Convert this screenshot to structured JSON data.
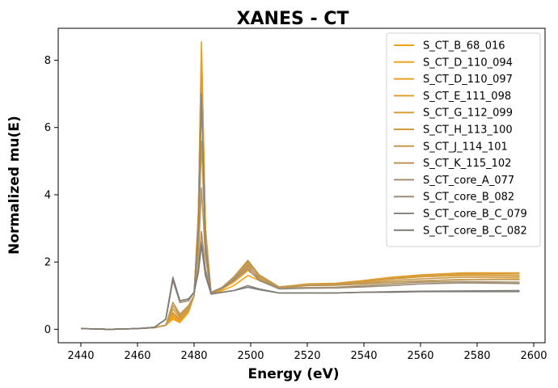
{
  "chart_data": {
    "type": "line",
    "title": "XANES - CT",
    "xlabel": "Energy (eV)",
    "ylabel": "Normalized mu(E)",
    "xlim": [
      2432,
      2604
    ],
    "ylim": [
      -0.4,
      8.95
    ],
    "xticks": [
      2440,
      2460,
      2480,
      2500,
      2520,
      2540,
      2560,
      2580,
      2600
    ],
    "yticks": [
      0,
      2,
      4,
      6,
      8
    ],
    "grid": false,
    "legend_position": "top-right",
    "series": [
      {
        "name": "S_CT_B_68_016",
        "color": "#f5a30c",
        "x": [
          2440,
          2450,
          2460,
          2466,
          2470,
          2472.5,
          2475,
          2478,
          2480,
          2481.5,
          2482.6,
          2484,
          2486,
          2490,
          2494,
          2499,
          2503,
          2510,
          2520,
          2530,
          2540,
          2550,
          2560,
          2575,
          2595
        ],
        "y": [
          0.02,
          0.0,
          0.02,
          0.05,
          0.12,
          0.3,
          0.2,
          0.5,
          1.0,
          3.5,
          8.55,
          3.0,
          1.05,
          1.15,
          1.3,
          1.6,
          1.45,
          1.22,
          1.3,
          1.32,
          1.36,
          1.4,
          1.44,
          1.48,
          1.5
        ]
      },
      {
        "name": "S_CT_D_110_094",
        "color": "#f0a21a",
        "x": [
          2440,
          2450,
          2460,
          2466,
          2470,
          2472.5,
          2475,
          2478,
          2480,
          2481.5,
          2482.6,
          2484,
          2486,
          2490,
          2494,
          2499,
          2503,
          2510,
          2520,
          2530,
          2540,
          2550,
          2560,
          2575,
          2595
        ],
        "y": [
          0.02,
          0.0,
          0.02,
          0.05,
          0.12,
          0.35,
          0.22,
          0.52,
          1.0,
          3.4,
          8.4,
          3.0,
          1.05,
          1.2,
          1.4,
          1.75,
          1.5,
          1.25,
          1.32,
          1.35,
          1.42,
          1.5,
          1.56,
          1.6,
          1.6
        ]
      },
      {
        "name": "S_CT_D_110_097",
        "color": "#e9a025",
        "x": [
          2440,
          2450,
          2460,
          2466,
          2470,
          2472.5,
          2475,
          2478,
          2480,
          2481.5,
          2482.6,
          2484,
          2486,
          2490,
          2494,
          2499,
          2503,
          2510,
          2520,
          2530,
          2540,
          2550,
          2560,
          2575,
          2595
        ],
        "y": [
          0.02,
          0.0,
          0.02,
          0.05,
          0.12,
          0.4,
          0.25,
          0.55,
          1.0,
          3.4,
          8.3,
          3.0,
          1.05,
          1.2,
          1.45,
          1.85,
          1.55,
          1.25,
          1.34,
          1.36,
          1.45,
          1.55,
          1.6,
          1.66,
          1.65
        ]
      },
      {
        "name": "S_CT_E_111_098",
        "color": "#e29e2e",
        "x": [
          2440,
          2450,
          2460,
          2466,
          2470,
          2472.5,
          2475,
          2478,
          2480,
          2481.5,
          2482.6,
          2484,
          2486,
          2490,
          2494,
          2499,
          2503,
          2510,
          2520,
          2530,
          2540,
          2550,
          2560,
          2575,
          2595
        ],
        "y": [
          0.02,
          0.0,
          0.02,
          0.05,
          0.12,
          0.45,
          0.28,
          0.55,
          1.0,
          3.3,
          8.0,
          3.0,
          1.05,
          1.22,
          1.5,
          1.95,
          1.6,
          1.25,
          1.35,
          1.37,
          1.45,
          1.55,
          1.62,
          1.68,
          1.68
        ]
      },
      {
        "name": "S_CT_G_112_099",
        "color": "#d99c36",
        "x": [
          2440,
          2450,
          2460,
          2466,
          2470,
          2472.5,
          2475,
          2478,
          2480,
          2481.5,
          2482.6,
          2484,
          2486,
          2490,
          2494,
          2499,
          2503,
          2510,
          2520,
          2530,
          2540,
          2550,
          2560,
          2575,
          2595
        ],
        "y": [
          0.02,
          0.0,
          0.02,
          0.05,
          0.12,
          0.5,
          0.3,
          0.58,
          1.0,
          3.2,
          7.6,
          3.0,
          1.05,
          1.25,
          1.55,
          2.0,
          1.62,
          1.26,
          1.34,
          1.36,
          1.44,
          1.52,
          1.6,
          1.66,
          1.65
        ]
      },
      {
        "name": "S_CT_H_113_100",
        "color": "#d09a3f",
        "x": [
          2440,
          2450,
          2460,
          2466,
          2470,
          2472.5,
          2475,
          2478,
          2480,
          2481.5,
          2482.6,
          2484,
          2486,
          2490,
          2494,
          2499,
          2503,
          2510,
          2520,
          2530,
          2540,
          2550,
          2560,
          2575,
          2595
        ],
        "y": [
          0.02,
          0.0,
          0.02,
          0.05,
          0.12,
          0.6,
          0.35,
          0.6,
          1.0,
          3.0,
          6.8,
          2.8,
          1.05,
          1.25,
          1.55,
          2.05,
          1.62,
          1.26,
          1.33,
          1.35,
          1.42,
          1.5,
          1.56,
          1.62,
          1.6
        ]
      },
      {
        "name": "S_CT_J_114_101",
        "color": "#c69a4b",
        "x": [
          2440,
          2450,
          2460,
          2466,
          2470,
          2472.5,
          2475,
          2478,
          2480,
          2481.5,
          2482.6,
          2484,
          2486,
          2490,
          2494,
          2499,
          2503,
          2510,
          2520,
          2530,
          2540,
          2550,
          2560,
          2575,
          2595
        ],
        "y": [
          0.02,
          0.0,
          0.02,
          0.05,
          0.12,
          0.7,
          0.4,
          0.65,
          1.0,
          2.6,
          5.6,
          2.5,
          1.05,
          1.25,
          1.55,
          2.05,
          1.6,
          1.25,
          1.32,
          1.33,
          1.38,
          1.45,
          1.5,
          1.55,
          1.55
        ]
      },
      {
        "name": "S_CT_K_115_102",
        "color": "#bc9757",
        "x": [
          2440,
          2450,
          2460,
          2466,
          2470,
          2472.5,
          2475,
          2478,
          2480,
          2481.5,
          2482.6,
          2484,
          2486,
          2490,
          2494,
          2499,
          2503,
          2510,
          2520,
          2530,
          2540,
          2550,
          2560,
          2575,
          2595
        ],
        "y": [
          0.02,
          0.0,
          0.02,
          0.05,
          0.12,
          0.8,
          0.45,
          0.7,
          1.0,
          2.2,
          4.2,
          2.2,
          1.05,
          1.25,
          1.55,
          2.0,
          1.58,
          1.24,
          1.3,
          1.31,
          1.35,
          1.4,
          1.44,
          1.48,
          1.48
        ]
      },
      {
        "name": "S_CT_core_A_077",
        "color": "#a8906c",
        "x": [
          2440,
          2450,
          2460,
          2466,
          2470,
          2472.5,
          2475,
          2478,
          2480,
          2481.5,
          2482.6,
          2484,
          2486,
          2490,
          2494,
          2499,
          2503,
          2510,
          2520,
          2530,
          2540,
          2550,
          2560,
          2575,
          2595
        ],
        "y": [
          0.02,
          0.0,
          0.02,
          0.06,
          0.3,
          1.5,
          0.8,
          0.85,
          1.1,
          1.8,
          2.9,
          1.8,
          1.1,
          1.25,
          1.5,
          1.9,
          1.5,
          1.22,
          1.24,
          1.25,
          1.3,
          1.35,
          1.4,
          1.42,
          1.4
        ]
      },
      {
        "name": "S_CT_core_B_082",
        "color": "#9c8c78",
        "x": [
          2440,
          2450,
          2460,
          2466,
          2470,
          2472.5,
          2475,
          2478,
          2480,
          2481.5,
          2482.6,
          2484,
          2486,
          2490,
          2494,
          2499,
          2503,
          2510,
          2520,
          2530,
          2540,
          2550,
          2560,
          2575,
          2595
        ],
        "y": [
          0.02,
          0.0,
          0.02,
          0.06,
          0.3,
          1.45,
          0.8,
          0.85,
          1.1,
          1.7,
          2.6,
          1.7,
          1.1,
          1.22,
          1.45,
          1.8,
          1.45,
          1.2,
          1.22,
          1.23,
          1.26,
          1.3,
          1.35,
          1.38,
          1.36
        ]
      },
      {
        "name": "S_CT_core_B_C_079",
        "color": "#8a8680",
        "x": [
          2440,
          2450,
          2460,
          2466,
          2470,
          2472.5,
          2475,
          2478,
          2480,
          2481.5,
          2482.6,
          2484,
          2486,
          2490,
          2494,
          2499,
          2503,
          2510,
          2520,
          2530,
          2540,
          2550,
          2560,
          2575,
          2595
        ],
        "y": [
          0.02,
          0.0,
          0.02,
          0.06,
          0.3,
          1.55,
          0.85,
          0.9,
          1.1,
          3.0,
          7.0,
          2.5,
          1.05,
          1.1,
          1.15,
          1.3,
          1.2,
          1.08,
          1.08,
          1.08,
          1.1,
          1.1,
          1.12,
          1.12,
          1.12
        ]
      },
      {
        "name": "S_CT_core_B_C_082",
        "color": "#7e7a76",
        "x": [
          2440,
          2450,
          2460,
          2466,
          2470,
          2472.5,
          2475,
          2478,
          2480,
          2481.5,
          2482.6,
          2484,
          2486,
          2490,
          2494,
          2499,
          2503,
          2510,
          2520,
          2530,
          2540,
          2550,
          2560,
          2575,
          2595
        ],
        "y": [
          0.02,
          0.0,
          0.02,
          0.06,
          0.3,
          1.5,
          0.85,
          0.9,
          1.1,
          1.7,
          2.5,
          1.6,
          1.05,
          1.1,
          1.15,
          1.25,
          1.18,
          1.08,
          1.08,
          1.08,
          1.1,
          1.12,
          1.13,
          1.14,
          1.15
        ]
      }
    ]
  }
}
